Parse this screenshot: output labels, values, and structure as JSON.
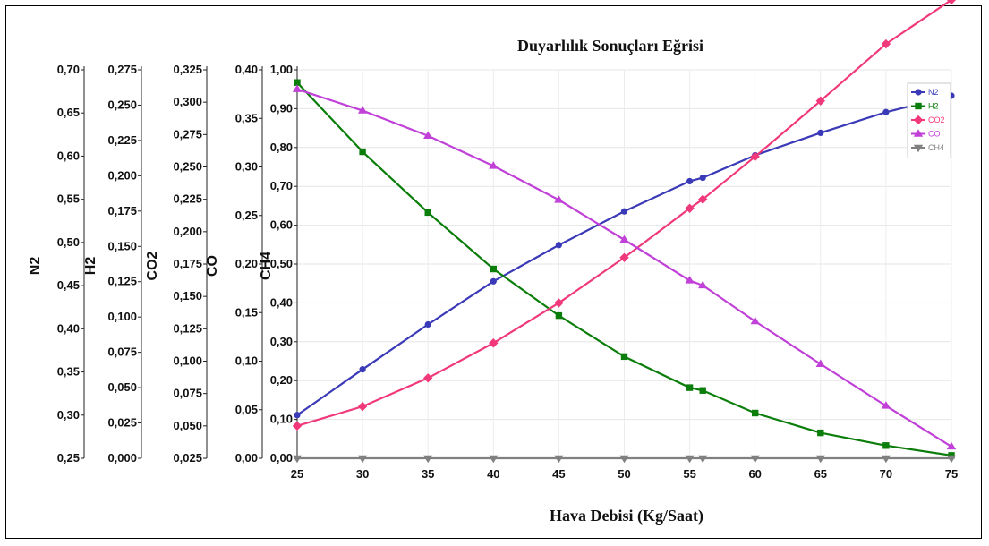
{
  "chart_data": {
    "type": "line",
    "title": "Duyarlılık Sonuçları Eğrisi",
    "xlabel": "Hava Debisi (Kg/Saat)",
    "x": [
      25,
      30,
      35,
      40,
      45,
      50,
      55,
      56,
      60,
      65,
      70,
      75
    ],
    "xlim": [
      25,
      75
    ],
    "xticks": [
      "25",
      "30",
      "35",
      "40",
      "45",
      "50",
      "55",
      "60",
      "65",
      "70",
      "75"
    ],
    "grid": true,
    "legend_position": "top-right",
    "axes": [
      {
        "label": "N2",
        "ticks": [
          "0,70",
          "0,65",
          "0,60",
          "0,55",
          "0,50",
          "0,45",
          "0,40",
          "0,35",
          "0,30",
          "0,25"
        ]
      },
      {
        "label": "H2",
        "ticks": [
          "0,275",
          "0,250",
          "0,225",
          "0,200",
          "0,175",
          "0,150",
          "0,125",
          "0,100",
          "0,075",
          "0,050",
          "0,025",
          "0,000"
        ]
      },
      {
        "label": "CO2",
        "ticks": [
          "0,325",
          "0,300",
          "0,275",
          "0,250",
          "0,225",
          "0,200",
          "0,175",
          "0,150",
          "0,125",
          "0,100",
          "0,075",
          "0,050",
          "0,025"
        ]
      },
      {
        "label": "CO",
        "ticks": [
          "0,40",
          "0,35",
          "0,30",
          "0,25",
          "0,20",
          "0,15",
          "0,10",
          "0,05",
          "0,00"
        ]
      },
      {
        "label": "CH4",
        "ticks": [
          "1,00",
          "0,90",
          "0,80",
          "0,70",
          "0,60",
          "0,50",
          "0,40",
          "0,30",
          "0,20",
          "0,10",
          "0,00"
        ]
      }
    ],
    "series": [
      {
        "name": "N2",
        "color": "#3a3ab8",
        "marker": "circle",
        "values": [
          0.3,
          0.353,
          0.405,
          0.455,
          0.497,
          0.536,
          0.571,
          0.575,
          0.601,
          0.627,
          0.651,
          0.67
        ]
      },
      {
        "name": "H2",
        "color": "#0a7d0a",
        "marker": "square",
        "values": [
          0.266,
          0.217,
          0.174,
          0.134,
          0.101,
          0.072,
          0.05,
          0.048,
          0.032,
          0.018,
          0.009,
          0.002
        ]
      },
      {
        "name": "CO2",
        "color": "#f0387a",
        "marker": "diamond",
        "values": [
          0.05,
          0.065,
          0.087,
          0.114,
          0.145,
          0.18,
          0.218,
          0.225,
          0.258,
          0.301,
          0.345,
          0.379
        ]
      },
      {
        "name": "CO",
        "color": "#c040d8",
        "marker": "triangle-up",
        "values": [
          0.38,
          0.358,
          0.332,
          0.301,
          0.266,
          0.225,
          0.183,
          0.178,
          0.141,
          0.097,
          0.054,
          0.012
        ]
      },
      {
        "name": "CH4",
        "color": "#808080",
        "marker": "triangle-down",
        "values": [
          0,
          0,
          0,
          0,
          0,
          0,
          0,
          0,
          0,
          0,
          0,
          0
        ]
      }
    ]
  }
}
